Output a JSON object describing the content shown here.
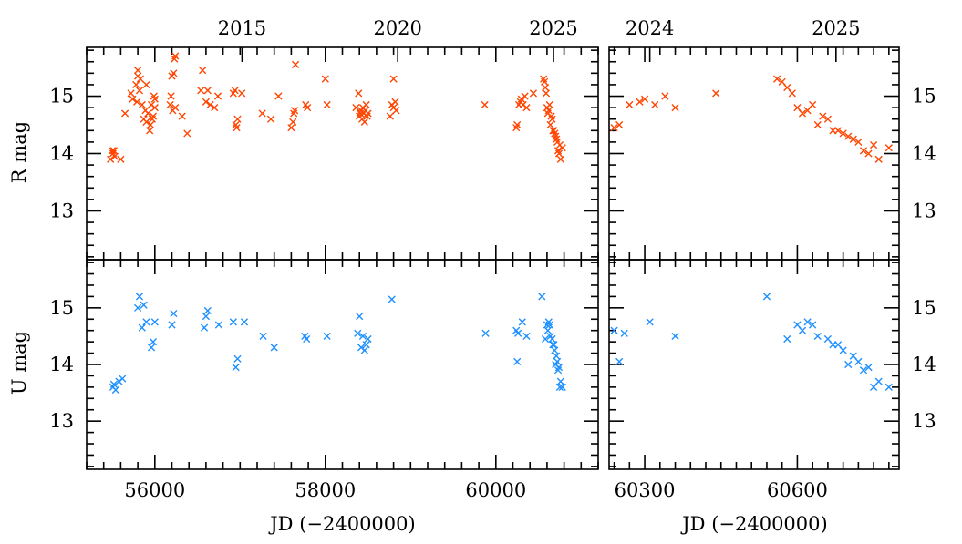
{
  "chart_data": {
    "type": "scatter",
    "marker": "x",
    "colors": {
      "R": "#ff4500",
      "U": "#1e90ff"
    },
    "axes_labels": {
      "x_bottom": "JD (−2400000)",
      "y_top": "R mag",
      "y_bottom": "U mag"
    },
    "left_panels": {
      "xlim": [
        55200,
        61200
      ],
      "x_major_ticks": [
        56000,
        58000,
        60000
      ],
      "x_tick_labels": [
        "56000",
        "58000",
        "60000"
      ],
      "year_ticks": [
        {
          "label": "2015",
          "jd": 57023
        },
        {
          "label": "2020",
          "jd": 58849
        },
        {
          "label": "2025",
          "jd": 60676
        }
      ]
    },
    "right_panels": {
      "xlim": [
        60230,
        60800
      ],
      "x_major_ticks": [
        60300,
        60600
      ],
      "x_tick_labels": [
        "60300",
        "60600"
      ],
      "year_ticks": [
        {
          "label": "2024",
          "jd": 60310
        },
        {
          "label": "2025",
          "jd": 60676
        }
      ]
    },
    "R_panel": {
      "ylim": [
        15.85,
        12.15
      ],
      "y_major_ticks": [
        13,
        14,
        15
      ],
      "y_tick_labels": [
        "13",
        "14",
        "15"
      ],
      "series": [
        {
          "x": [
            55480,
            55500,
            55510,
            55520,
            55530,
            55600,
            55650,
            55720,
            55740,
            55780,
            55790,
            55800,
            55800,
            55820,
            55830,
            55850,
            55870,
            55890,
            55900,
            55900,
            55920,
            55940,
            55950,
            55960,
            55970,
            55980,
            55990,
            56000,
            56000,
            56180,
            56190,
            56200,
            56210,
            56220,
            56230,
            56240,
            56240,
            56320,
            56380,
            56540,
            56560,
            56600,
            56620,
            56650,
            56700,
            56740,
            56920,
            56940,
            56950,
            56960,
            56970,
            57020,
            57260,
            57360,
            57450,
            57600,
            57620,
            57630,
            57640,
            57650,
            57770,
            57790,
            58000,
            58020,
            58360,
            58390,
            58400,
            58410,
            58420,
            58430,
            58440,
            58450,
            58460,
            58470,
            58480,
            58490,
            58500,
            58760,
            58780,
            58800,
            58800,
            58820,
            58830,
            59870,
            60240,
            60250,
            60270,
            60290,
            60300,
            60320,
            60340,
            60360,
            60440,
            60560,
            60570,
            60580,
            60590,
            60600,
            60610,
            60620,
            60630,
            60640,
            60650,
            60660,
            60670,
            60680,
            60690,
            60700,
            60710,
            60720,
            60730,
            60740,
            60750,
            60760,
            60780
          ],
          "y": [
            13.9,
            14.05,
            14.0,
            14.05,
            13.95,
            13.9,
            14.7,
            15.05,
            14.95,
            15.2,
            14.9,
            15.35,
            15.45,
            15.1,
            15.3,
            14.85,
            14.6,
            14.75,
            14.55,
            15.2,
            14.7,
            14.4,
            14.5,
            14.85,
            14.6,
            14.65,
            15.0,
            14.95,
            14.8,
            14.85,
            15.0,
            15.35,
            14.75,
            15.4,
            15.65,
            15.7,
            14.8,
            14.65,
            14.35,
            15.1,
            15.45,
            14.9,
            15.1,
            14.85,
            14.8,
            15.0,
            15.05,
            15.1,
            14.5,
            14.45,
            14.6,
            15.05,
            14.7,
            14.6,
            15.0,
            14.45,
            14.55,
            14.7,
            14.75,
            15.55,
            14.85,
            14.8,
            15.3,
            14.85,
            14.8,
            15.05,
            14.65,
            14.7,
            14.75,
            14.6,
            14.8,
            14.7,
            14.55,
            14.75,
            14.85,
            14.65,
            14.7,
            14.65,
            14.85,
            14.8,
            15.3,
            14.9,
            14.75,
            14.85,
            14.45,
            14.5,
            14.85,
            14.9,
            14.95,
            14.85,
            15.0,
            14.8,
            15.05,
            15.3,
            15.25,
            15.15,
            15.05,
            14.8,
            14.7,
            14.75,
            14.85,
            14.5,
            14.65,
            14.6,
            14.4,
            14.4,
            14.35,
            14.3,
            14.25,
            14.2,
            14.05,
            14.0,
            14.15,
            13.9,
            14.1
          ]
        }
      ]
    },
    "U_panel": {
      "ylim": [
        15.85,
        12.15
      ],
      "y_major_ticks": [
        13,
        14,
        15
      ],
      "y_tick_labels": [
        "13",
        "14",
        "15"
      ],
      "series": [
        {
          "x": [
            55510,
            55520,
            55540,
            55580,
            55620,
            55800,
            55820,
            55850,
            55870,
            55900,
            55960,
            55980,
            56000,
            56200,
            56220,
            56580,
            56600,
            56620,
            56750,
            56920,
            56950,
            56970,
            57050,
            57270,
            57400,
            57760,
            57780,
            58020,
            58380,
            58400,
            58420,
            58440,
            58460,
            58480,
            58500,
            58780,
            59880,
            60240,
            60250,
            60260,
            60310,
            60360,
            60540,
            60580,
            60600,
            60610,
            60620,
            60630,
            60640,
            60660,
            60670,
            60680,
            60690,
            60700,
            60710,
            60720,
            60730,
            60740,
            60750,
            60760,
            60780
          ],
          "y": [
            13.6,
            13.65,
            13.55,
            13.7,
            13.75,
            15.0,
            15.2,
            14.65,
            15.05,
            14.75,
            14.3,
            14.4,
            14.75,
            14.7,
            14.9,
            14.65,
            14.85,
            14.95,
            14.7,
            14.75,
            13.95,
            14.1,
            14.75,
            14.5,
            14.3,
            14.5,
            14.45,
            14.5,
            14.55,
            14.85,
            14.3,
            14.5,
            14.25,
            14.35,
            14.45,
            15.15,
            14.55,
            14.6,
            14.05,
            14.55,
            14.75,
            14.5,
            15.2,
            14.45,
            14.7,
            14.6,
            14.75,
            14.7,
            14.5,
            14.45,
            14.35,
            14.35,
            14.25,
            14.0,
            14.15,
            14.05,
            13.9,
            13.95,
            13.6,
            13.7,
            13.6
          ]
        }
      ]
    }
  }
}
